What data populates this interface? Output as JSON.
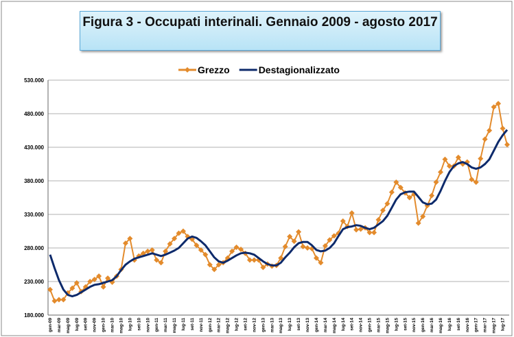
{
  "chart_data": {
    "type": "line",
    "title": "Figura 3 - Occupati interinali. Gennaio 2009 - agosto 2017",
    "categories": [
      "gen-09",
      null,
      "mar-09",
      null,
      "mag-09",
      null,
      "lug-09",
      null,
      "set-09",
      null,
      "nov-09",
      null,
      "gen-10",
      null,
      "mar-10",
      null,
      "mag-10",
      null,
      "lug-10",
      null,
      "set-10",
      null,
      "nov-10",
      null,
      "gen-11",
      null,
      "mar-11",
      null,
      "mag-11",
      null,
      "lug-11",
      null,
      "set-11",
      null,
      "nov-11",
      null,
      "gen-12",
      null,
      "mar-12",
      null,
      "mag-12",
      null,
      "lug-12",
      null,
      "set-12",
      null,
      "nov-12",
      null,
      "gen-13",
      null,
      "mar-13",
      null,
      "mag-13",
      null,
      "lug-13",
      null,
      "set-13",
      null,
      "nov-13",
      null,
      "gen-14",
      null,
      "mar-14",
      null,
      "mag-14",
      null,
      "lug-14",
      null,
      "set-14",
      null,
      "nov-14",
      null,
      "gen-15",
      null,
      "mar-15",
      null,
      "mag-15",
      null,
      "lug-15",
      null,
      "set-15",
      null,
      "nov-15",
      null,
      "gen-16",
      null,
      "mar-16",
      null,
      "mag-16",
      null,
      "lug-16",
      null,
      "set-16",
      null,
      "nov-16",
      null,
      "gen-17",
      null,
      "mar-17",
      null,
      "mag-17",
      null,
      "lug-17",
      null
    ],
    "series": [
      {
        "name": "Grezzo",
        "color": "#e38b2c",
        "marker": "diamond",
        "values": [
          218000,
          201000,
          203000,
          203000,
          213000,
          220000,
          228000,
          215000,
          222000,
          230000,
          233000,
          238000,
          222000,
          235000,
          229000,
          238000,
          248000,
          287000,
          294000,
          262000,
          268000,
          272000,
          275000,
          277000,
          262000,
          258000,
          275000,
          286000,
          294000,
          302000,
          305000,
          297000,
          293000,
          284000,
          277000,
          270000,
          255000,
          248000,
          255000,
          258000,
          265000,
          275000,
          281000,
          278000,
          272000,
          262000,
          262000,
          262000,
          251000,
          256000,
          253000,
          254000,
          265000,
          282000,
          297000,
          290000,
          304000,
          282000,
          280000,
          279000,
          265000,
          258000,
          283000,
          292000,
          298000,
          302000,
          320000,
          312000,
          332000,
          307000,
          308000,
          310000,
          303000,
          303000,
          322000,
          336000,
          346000,
          363000,
          378000,
          370000,
          362000,
          355000,
          360000,
          317000,
          327000,
          343000,
          358000,
          378000,
          393000,
          412000,
          402000,
          402000,
          415000,
          405000,
          408000,
          382000,
          378000,
          413000,
          442000,
          455000,
          490000,
          495000,
          458000,
          434000
        ]
      },
      {
        "name": "Destagionalizzato",
        "color": "#0d2a6b",
        "values": [
          270000,
          250000,
          232000,
          218000,
          210000,
          208000,
          210000,
          214000,
          218000,
          222000,
          225000,
          226000,
          228000,
          230000,
          232000,
          238000,
          247000,
          255000,
          260000,
          264000,
          266000,
          268000,
          270000,
          272000,
          270000,
          268000,
          270000,
          273000,
          276000,
          280000,
          287000,
          294000,
          297000,
          295000,
          290000,
          284000,
          275000,
          266000,
          260000,
          258000,
          261000,
          265000,
          269000,
          272000,
          273000,
          272000,
          270000,
          265000,
          260000,
          256000,
          254000,
          254000,
          258000,
          266000,
          273000,
          281000,
          287000,
          289000,
          289000,
          284000,
          277000,
          275000,
          276000,
          280000,
          287000,
          298000,
          308000,
          311000,
          312000,
          314000,
          313000,
          310000,
          308000,
          310000,
          315000,
          320000,
          328000,
          340000,
          352000,
          360000,
          363000,
          364000,
          364000,
          356000,
          348000,
          345000,
          346000,
          352000,
          365000,
          380000,
          393000,
          402000,
          406000,
          408000,
          405000,
          400000,
          398000,
          400000,
          405000,
          412000,
          425000,
          438000,
          448000,
          456000
        ]
      }
    ],
    "ylim": [
      180000,
      530000
    ],
    "yticks": [
      {
        "value": 180000,
        "label": "180.000"
      },
      {
        "value": 230000,
        "label": "230.000"
      },
      {
        "value": 280000,
        "label": "280.000"
      },
      {
        "value": 330000,
        "label": "330.000"
      },
      {
        "value": 380000,
        "label": "380.000"
      },
      {
        "value": 430000,
        "label": "430.000"
      },
      {
        "value": 480000,
        "label": "480.000"
      },
      {
        "value": 530000,
        "label": "530.000"
      }
    ],
    "grid": true,
    "legend": "top"
  }
}
